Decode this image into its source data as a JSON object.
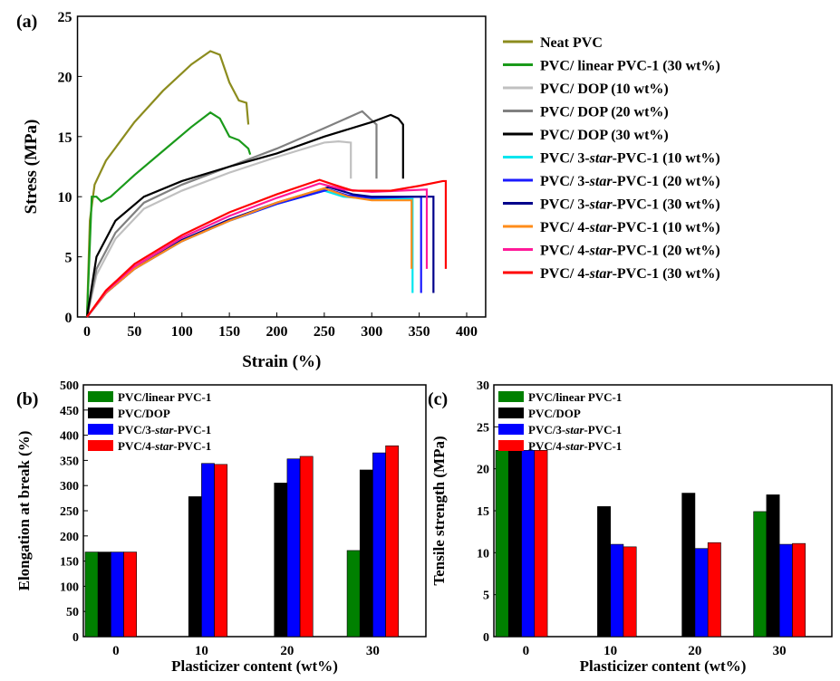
{
  "chart_data": [
    {
      "type": "line",
      "panel_label": "(a)",
      "xlabel": "Strain (%)",
      "ylabel": "Stress (MPa)",
      "xlim": [
        -10,
        420
      ],
      "ylim": [
        0,
        25
      ],
      "xticks": [
        0,
        50,
        100,
        150,
        200,
        250,
        300,
        350,
        400
      ],
      "yticks": [
        0,
        5,
        10,
        15,
        20,
        25
      ],
      "legend_position": "right",
      "series": [
        {
          "name": "Neat PVC",
          "color": "#8c8c1e",
          "points": [
            [
              0,
              0
            ],
            [
              3,
              8
            ],
            [
              8,
              11
            ],
            [
              20,
              13
            ],
            [
              50,
              16.2
            ],
            [
              80,
              18.8
            ],
            [
              110,
              21
            ],
            [
              130,
              22.1
            ],
            [
              140,
              21.8
            ],
            [
              150,
              19.5
            ],
            [
              160,
              18
            ],
            [
              168,
              17.8
            ],
            [
              170,
              16
            ]
          ]
        },
        {
          "name": "PVC/ linear PVC-1 (30 wt%)",
          "color": "#1a9a1a",
          "points": [
            [
              0,
              0
            ],
            [
              5,
              10
            ],
            [
              10,
              10
            ],
            [
              15,
              9.6
            ],
            [
              25,
              10
            ],
            [
              50,
              11.8
            ],
            [
              80,
              13.8
            ],
            [
              110,
              15.8
            ],
            [
              130,
              17
            ],
            [
              140,
              16.5
            ],
            [
              150,
              15
            ],
            [
              160,
              14.7
            ],
            [
              170,
              14
            ],
            [
              172,
              13.5
            ]
          ]
        },
        {
          "name": "PVC/ DOP (10 wt%)",
          "color": "#c0c0c0",
          "points": [
            [
              0,
              0
            ],
            [
              10,
              3.5
            ],
            [
              30,
              6.5
            ],
            [
              60,
              9
            ],
            [
              100,
              10.5
            ],
            [
              150,
              12
            ],
            [
              200,
              13.3
            ],
            [
              250,
              14.5
            ],
            [
              265,
              14.6
            ],
            [
              278,
              14.5
            ],
            [
              278,
              11.5
            ]
          ]
        },
        {
          "name": "PVC/ DOP (20 wt%)",
          "color": "#808080",
          "points": [
            [
              0,
              0
            ],
            [
              10,
              4
            ],
            [
              30,
              7
            ],
            [
              60,
              9.5
            ],
            [
              100,
              11
            ],
            [
              150,
              12.5
            ],
            [
              200,
              14
            ],
            [
              250,
              15.7
            ],
            [
              290,
              17.1
            ],
            [
              298,
              16.5
            ],
            [
              305,
              16
            ],
            [
              305,
              11.5
            ]
          ]
        },
        {
          "name": "PVC/ DOP (30 wt%)",
          "color": "#000000",
          "points": [
            [
              0,
              0
            ],
            [
              10,
              5
            ],
            [
              30,
              8
            ],
            [
              60,
              10
            ],
            [
              100,
              11.3
            ],
            [
              150,
              12.5
            ],
            [
              200,
              13.6
            ],
            [
              250,
              15
            ],
            [
              300,
              16.2
            ],
            [
              320,
              16.8
            ],
            [
              328,
              16.5
            ],
            [
              333,
              16
            ],
            [
              333,
              11.5
            ]
          ]
        },
        {
          "name": "PVC/ 3-star-PVC-1 (10 wt%)",
          "color": "#00e5ee",
          "points": [
            [
              0,
              0
            ],
            [
              20,
              2
            ],
            [
              50,
              4
            ],
            [
              100,
              6.3
            ],
            [
              150,
              8
            ],
            [
              200,
              9.4
            ],
            [
              250,
              10.5
            ],
            [
              270,
              10
            ],
            [
              300,
              9.8
            ],
            [
              343,
              9.8
            ],
            [
              343,
              2
            ]
          ]
        },
        {
          "name": "PVC/ 3-star-PVC-1 (20 wt%)",
          "color": "#1a1aff",
          "points": [
            [
              0,
              0
            ],
            [
              20,
              2
            ],
            [
              50,
              4
            ],
            [
              100,
              6.3
            ],
            [
              150,
              8
            ],
            [
              200,
              9.4
            ],
            [
              255,
              10.6
            ],
            [
              275,
              10.1
            ],
            [
              300,
              9.9
            ],
            [
              352,
              10
            ],
            [
              352,
              2
            ]
          ]
        },
        {
          "name": "PVC/ 3-star-PVC-1 (30 wt%)",
          "color": "#00008b",
          "points": [
            [
              0,
              0
            ],
            [
              20,
              2
            ],
            [
              50,
              4
            ],
            [
              100,
              6.4
            ],
            [
              150,
              8.1
            ],
            [
              200,
              9.5
            ],
            [
              255,
              10.8
            ],
            [
              280,
              10.2
            ],
            [
              300,
              10
            ],
            [
              365,
              10
            ],
            [
              365,
              2
            ]
          ]
        },
        {
          "name": "PVC/ 4-star-PVC-1 (10 wt%)",
          "color": "#ff8c1a",
          "points": [
            [
              0,
              0
            ],
            [
              20,
              2
            ],
            [
              50,
              4
            ],
            [
              100,
              6.3
            ],
            [
              150,
              8
            ],
            [
              200,
              9.5
            ],
            [
              250,
              10.7
            ],
            [
              275,
              10
            ],
            [
              300,
              9.7
            ],
            [
              342,
              9.7
            ],
            [
              342,
              4
            ]
          ]
        },
        {
          "name": "PVC/ 4-star-PVC-1 (20 wt%)",
          "color": "#ff1a99",
          "points": [
            [
              0,
              0
            ],
            [
              20,
              2.1
            ],
            [
              50,
              4.2
            ],
            [
              100,
              6.6
            ],
            [
              150,
              8.4
            ],
            [
              200,
              9.9
            ],
            [
              245,
              11.1
            ],
            [
              270,
              10.6
            ],
            [
              300,
              10.4
            ],
            [
              358,
              10.6
            ],
            [
              358,
              4
            ]
          ]
        },
        {
          "name": "PVC/ 4-star-PVC-1 (30 wt%)",
          "color": "#ff0000",
          "points": [
            [
              0,
              0
            ],
            [
              20,
              2.2
            ],
            [
              50,
              4.4
            ],
            [
              100,
              6.8
            ],
            [
              150,
              8.7
            ],
            [
              200,
              10.2
            ],
            [
              245,
              11.4
            ],
            [
              260,
              11
            ],
            [
              280,
              10.5
            ],
            [
              320,
              10.5
            ],
            [
              350,
              10.9
            ],
            [
              375,
              11.3
            ],
            [
              378,
              11.3
            ],
            [
              378,
              4
            ]
          ]
        }
      ]
    },
    {
      "type": "bar",
      "panel_label": "(b)",
      "xlabel": "Plasticizer content (wt%)",
      "ylabel": "Elongation at break (%)",
      "ylim": [
        0,
        500
      ],
      "yticks": [
        0,
        50,
        100,
        150,
        200,
        250,
        300,
        350,
        400,
        450,
        500
      ],
      "categories": [
        "0",
        "10",
        "20",
        "30"
      ],
      "legend_position": "top-left",
      "series": [
        {
          "name": "PVC/linear PVC-1",
          "color": "#008000",
          "values": [
            168,
            null,
            null,
            171
          ]
        },
        {
          "name": "PVC/DOP",
          "color": "#000000",
          "values": [
            168,
            278,
            305,
            331
          ]
        },
        {
          "name": "PVC/3-star-PVC-1",
          "color": "#0000ff",
          "values": [
            168,
            344,
            353,
            365
          ]
        },
        {
          "name": "PVC/4-star-PVC-1",
          "color": "#ff0000",
          "values": [
            168,
            342,
            358,
            379
          ]
        }
      ]
    },
    {
      "type": "bar",
      "panel_label": "(c)",
      "xlabel": "Plasticizer content (wt%)",
      "ylabel": "Tensile strength (MPa)",
      "ylim": [
        0,
        30
      ],
      "yticks": [
        0,
        5,
        10,
        15,
        20,
        25,
        30
      ],
      "categories": [
        "0",
        "10",
        "20",
        "30"
      ],
      "legend_position": "top-left",
      "series": [
        {
          "name": "PVC/linear PVC-1",
          "color": "#008000",
          "values": [
            22.2,
            null,
            null,
            14.9
          ]
        },
        {
          "name": "PVC/DOP",
          "color": "#000000",
          "values": [
            22.2,
            15.5,
            17.1,
            16.9
          ]
        },
        {
          "name": "PVC/3-star-PVC-1",
          "color": "#0000ff",
          "values": [
            22.2,
            11.0,
            10.5,
            11.0
          ]
        },
        {
          "name": "PVC/4-star-PVC-1",
          "color": "#ff0000",
          "values": [
            22.2,
            10.7,
            11.2,
            11.1
          ]
        }
      ]
    }
  ]
}
